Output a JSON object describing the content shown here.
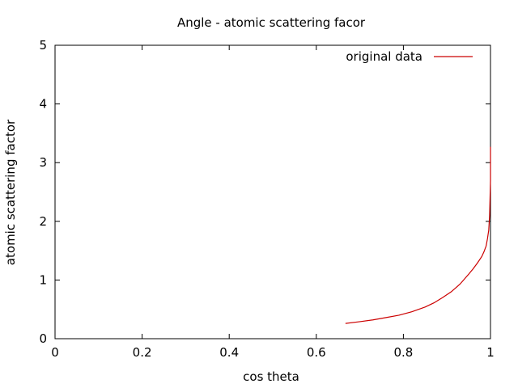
{
  "chart_data": {
    "type": "line",
    "title": "Angle - atomic scattering facor",
    "xlabel": "cos theta",
    "ylabel": "atomic scattering factor",
    "xlim": [
      0,
      1
    ],
    "ylim": [
      0,
      5
    ],
    "xticks": [
      "0",
      "0.2",
      "0.4",
      "0.6",
      "0.8",
      "1"
    ],
    "yticks": [
      "0",
      "1",
      "2",
      "3",
      "4",
      "5"
    ],
    "grid": false,
    "legend_position": "top-right",
    "series": [
      {
        "name": "original data",
        "color": "#cc0000",
        "x": [
          0.667,
          0.7,
          0.73,
          0.76,
          0.79,
          0.82,
          0.85,
          0.87,
          0.89,
          0.91,
          0.93,
          0.95,
          0.96,
          0.97,
          0.98,
          0.985,
          0.99,
          0.993,
          0.996,
          0.998,
          0.999,
          1.0,
          1.0,
          1.0
        ],
        "y": [
          0.26,
          0.29,
          0.32,
          0.36,
          0.4,
          0.46,
          0.54,
          0.61,
          0.7,
          0.8,
          0.93,
          1.1,
          1.19,
          1.29,
          1.4,
          1.48,
          1.58,
          1.7,
          1.85,
          2.1,
          2.4,
          2.7,
          3.0,
          3.27
        ]
      }
    ]
  }
}
